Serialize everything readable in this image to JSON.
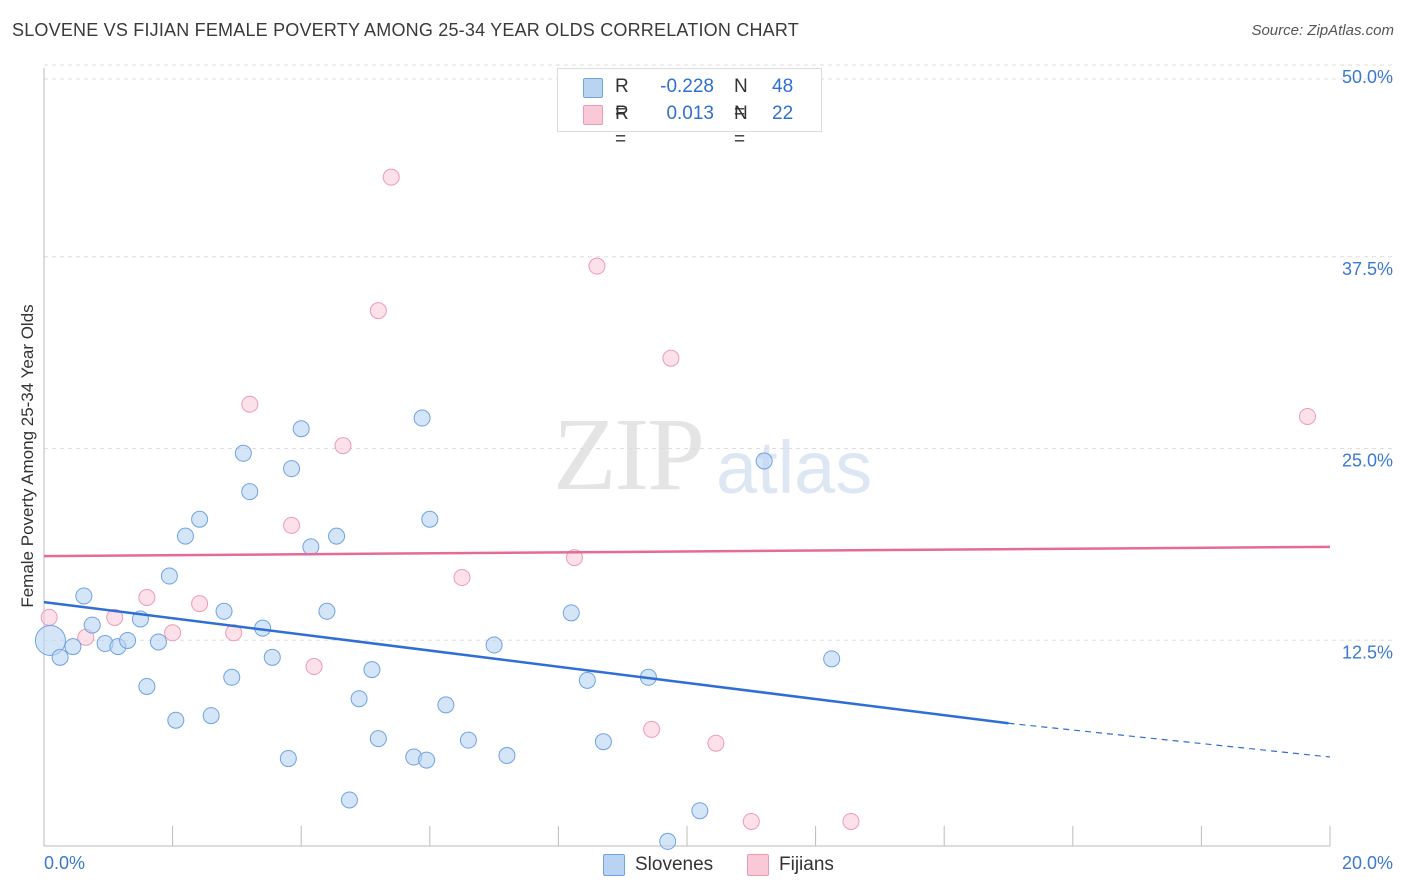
{
  "header": {
    "title": "SLOVENE VS FIJIAN FEMALE POVERTY AMONG 25-34 YEAR OLDS CORRELATION CHART",
    "source": "Source: ZipAtlas.com"
  },
  "watermark": {
    "zip": "ZIP",
    "atlas": "atlas"
  },
  "stats": {
    "rows": [
      {
        "r_label": "R =",
        "r_value": "-0.228",
        "n_label": "N =",
        "n_value": "48"
      },
      {
        "r_label": "R =",
        "r_value": "0.013",
        "n_label": "N =",
        "n_value": "22"
      }
    ]
  },
  "legend": {
    "items": [
      {
        "label": "Slovenes"
      },
      {
        "label": "Fijians"
      }
    ]
  },
  "colors": {
    "slovenes_fill": "#b9d3f3",
    "slovenes_stroke": "#6fa2e0",
    "slovenes_line": "#2e6fd1",
    "fijians_fill": "#f9c9d8",
    "fijians_stroke": "#ee9ab6",
    "fijians_line": "#e56a95",
    "tick_label": "#3b78d0",
    "grid": "#dddddd"
  },
  "chart_data": {
    "type": "scatter",
    "title": "SLOVENE VS FIJIAN FEMALE POVERTY AMONG 25-34 YEAR OLDS CORRELATION CHART",
    "xlabel": "",
    "ylabel": "Female Poverty Among 25-34 Year Olds",
    "xlim": [
      0,
      20
    ],
    "ylim": [
      0,
      50
    ],
    "x_tick_labels": [
      "0.0%",
      "20.0%"
    ],
    "y_ticks": [
      12.5,
      25.0,
      37.5,
      50.0
    ],
    "y_tick_labels": [
      "12.5%",
      "25.0%",
      "37.5%",
      "50.0%"
    ],
    "grid": true,
    "legend_position": "bottom-center",
    "series": [
      {
        "name": "Slovenes",
        "color": "#6fa2e0",
        "r": -0.228,
        "n": 48,
        "trend": {
          "x": [
            0,
            15.0
          ],
          "y": [
            15.9,
            8.0
          ],
          "dashed_to": [
            20.0,
            5.8
          ]
        },
        "points": [
          [
            0.1,
            13.4
          ],
          [
            0.25,
            12.3
          ],
          [
            0.45,
            13.0
          ],
          [
            0.62,
            16.3
          ],
          [
            0.75,
            14.4
          ],
          [
            0.95,
            13.2
          ],
          [
            1.15,
            13.0
          ],
          [
            1.3,
            13.4
          ],
          [
            1.5,
            14.8
          ],
          [
            1.6,
            10.4
          ],
          [
            1.78,
            13.3
          ],
          [
            1.95,
            17.6
          ],
          [
            2.05,
            8.2
          ],
          [
            2.2,
            20.2
          ],
          [
            2.42,
            21.3
          ],
          [
            2.6,
            8.5
          ],
          [
            2.8,
            15.3
          ],
          [
            2.92,
            11.0
          ],
          [
            3.1,
            25.6
          ],
          [
            3.2,
            23.1
          ],
          [
            3.4,
            14.2
          ],
          [
            3.55,
            12.3
          ],
          [
            3.8,
            5.7
          ],
          [
            3.85,
            24.6
          ],
          [
            4.0,
            27.2
          ],
          [
            4.15,
            19.5
          ],
          [
            4.4,
            15.3
          ],
          [
            4.55,
            20.2
          ],
          [
            4.75,
            3.0
          ],
          [
            4.9,
            9.6
          ],
          [
            5.1,
            11.5
          ],
          [
            5.2,
            7.0
          ],
          [
            5.88,
            27.9
          ],
          [
            6.0,
            21.3
          ],
          [
            5.75,
            5.8
          ],
          [
            5.95,
            5.6
          ],
          [
            6.25,
            9.2
          ],
          [
            6.6,
            6.9
          ],
          [
            7.0,
            13.1
          ],
          [
            7.2,
            5.9
          ],
          [
            8.2,
            15.2
          ],
          [
            8.45,
            10.8
          ],
          [
            8.7,
            6.8
          ],
          [
            9.4,
            11.0
          ],
          [
            9.7,
            0.3
          ],
          [
            10.2,
            2.3
          ],
          [
            11.2,
            25.1
          ],
          [
            12.25,
            12.2
          ]
        ]
      },
      {
        "name": "Fijians",
        "color": "#ee9ab6",
        "r": 0.013,
        "n": 22,
        "trend": {
          "x": [
            0,
            20.0
          ],
          "y": [
            18.9,
            19.5
          ]
        },
        "points": [
          [
            0.08,
            14.9
          ],
          [
            0.65,
            13.6
          ],
          [
            1.1,
            14.9
          ],
          [
            1.6,
            16.2
          ],
          [
            2.0,
            13.9
          ],
          [
            2.42,
            15.8
          ],
          [
            2.95,
            13.9
          ],
          [
            3.2,
            28.8
          ],
          [
            3.85,
            20.9
          ],
          [
            4.2,
            11.7
          ],
          [
            4.65,
            26.1
          ],
          [
            5.2,
            34.9
          ],
          [
            5.4,
            43.6
          ],
          [
            6.5,
            17.5
          ],
          [
            8.25,
            18.8
          ],
          [
            8.6,
            37.8
          ],
          [
            9.45,
            7.6
          ],
          [
            9.75,
            31.8
          ],
          [
            10.45,
            6.7
          ],
          [
            11.0,
            1.6
          ],
          [
            12.55,
            1.6
          ],
          [
            19.65,
            28.0
          ]
        ]
      }
    ]
  }
}
